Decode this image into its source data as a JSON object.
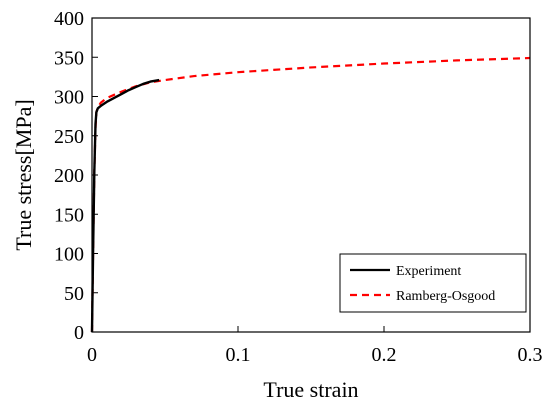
{
  "chart_data": {
    "type": "line",
    "title": "",
    "xlabel": "True strain",
    "ylabel": "True stress[MPa]",
    "xlim": [
      0,
      0.3
    ],
    "ylim": [
      0,
      400
    ],
    "xticks": [
      0,
      0.1,
      0.2,
      0.3
    ],
    "xtick_labels": [
      "0",
      "0.1",
      "0.2",
      "0.3"
    ],
    "yticks": [
      0,
      50,
      100,
      150,
      200,
      250,
      300,
      350,
      400
    ],
    "ytick_labels": [
      "0",
      "50",
      "100",
      "150",
      "200",
      "250",
      "300",
      "350",
      "400"
    ],
    "grid": false,
    "legend_position": "bottom-right",
    "series": [
      {
        "name": "Experiment",
        "color": "#000000",
        "style": "solid",
        "x": [
          0,
          0.0008,
          0.0016,
          0.0024,
          0.003,
          0.004,
          0.006,
          0.01,
          0.015,
          0.02,
          0.025,
          0.03,
          0.035,
          0.04,
          0.046
        ],
        "y": [
          0,
          110,
          205,
          265,
          280,
          285,
          288,
          293,
          298,
          303,
          308,
          312,
          316,
          319,
          321
        ]
      },
      {
        "name": "Ramberg-Osgood",
        "color": "#ff0000",
        "style": "dashed",
        "x": [
          0,
          0.0008,
          0.0016,
          0.0024,
          0.003,
          0.004,
          0.006,
          0.01,
          0.02,
          0.03,
          0.04,
          0.05,
          0.07,
          0.1,
          0.15,
          0.2,
          0.25,
          0.3
        ],
        "y": [
          0,
          110,
          205,
          260,
          280,
          286,
          292,
          298,
          306,
          313,
          318,
          321,
          326,
          331,
          337,
          342,
          346,
          349
        ]
      }
    ]
  }
}
